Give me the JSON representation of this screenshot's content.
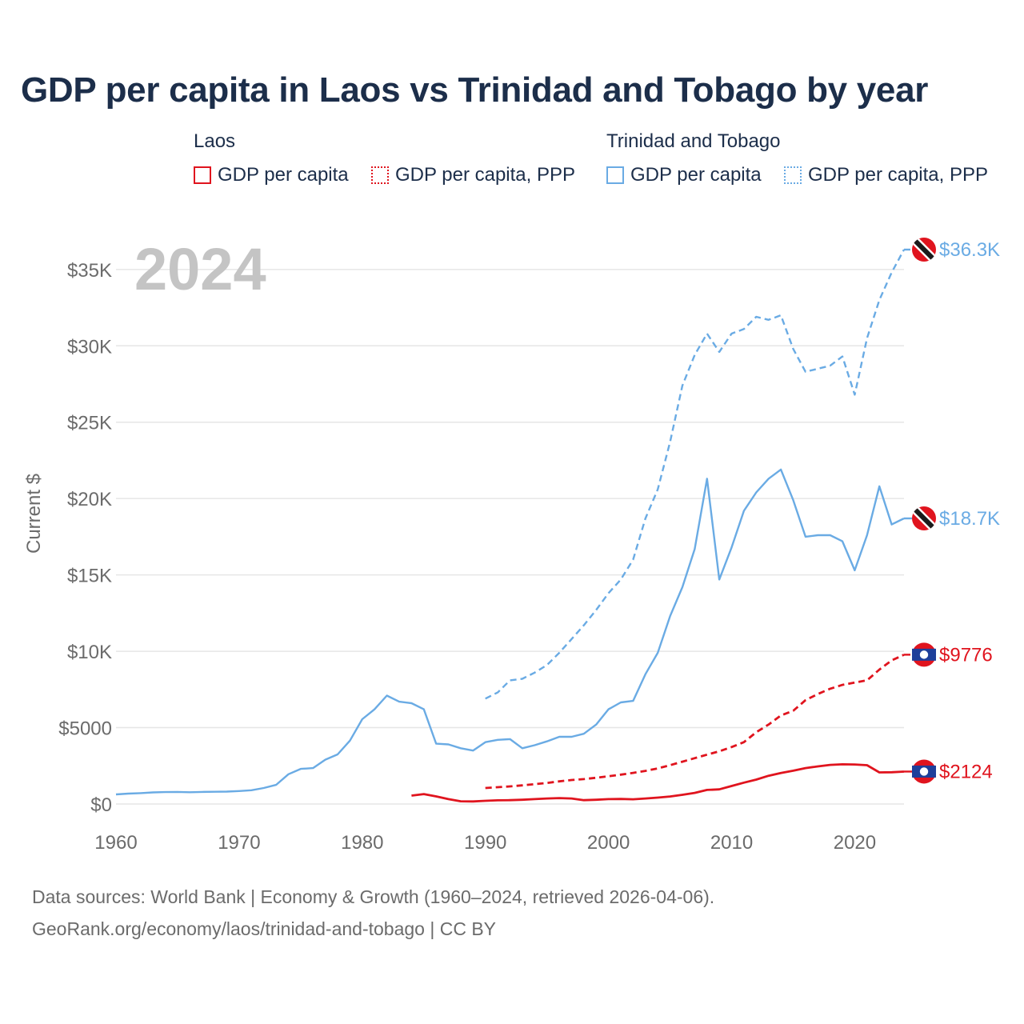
{
  "title": "GDP per capita in Laos vs Trinidad and Tobago by year",
  "legend": {
    "groups": [
      {
        "title": "Laos",
        "items": [
          {
            "label": "GDP per capita",
            "color": "#e0141e",
            "style": "solid"
          },
          {
            "label": "GDP per capita, PPP",
            "color": "#e0141e",
            "style": "dotted"
          }
        ]
      },
      {
        "title": "Trinidad and Tobago",
        "items": [
          {
            "label": "GDP per capita",
            "color": "#6aabe4",
            "style": "solid"
          },
          {
            "label": "GDP per capita, PPP",
            "color": "#6aabe4",
            "style": "dotted"
          }
        ]
      }
    ]
  },
  "footer": {
    "line1": "Data sources: World Bank | Economy & Growth (1960–2024, retrieved 2026-04-06).",
    "line2": "GeoRank.org/economy/laos/trinidad-and-tobago | CC BY"
  },
  "chart_data": {
    "type": "line",
    "year_label": "2024",
    "ylabel": "Current $",
    "xlim": [
      1960,
      2024
    ],
    "ylim": [
      0,
      36300
    ],
    "xticks": [
      1960,
      1970,
      1980,
      1990,
      2000,
      2010,
      2020
    ],
    "yticks": [
      0,
      5000,
      10000,
      15000,
      20000,
      25000,
      30000,
      35000
    ],
    "ytick_labels": [
      "$0",
      "$5000",
      "$10K",
      "$15K",
      "$20K",
      "$25K",
      "$30K",
      "$35K"
    ],
    "series": [
      {
        "name": "Trinidad and Tobago — GDP per capita, PPP",
        "country": "Trinidad and Tobago",
        "color": "#6aabe4",
        "dash": "dashed",
        "end_label": "$36.3K",
        "x": [
          1990,
          1991,
          1992,
          1993,
          1994,
          1995,
          1996,
          1997,
          1998,
          1999,
          2000,
          2001,
          2002,
          2003,
          2004,
          2005,
          2006,
          2007,
          2008,
          2009,
          2010,
          2011,
          2012,
          2013,
          2014,
          2015,
          2016,
          2017,
          2018,
          2019,
          2020,
          2021,
          2022,
          2023,
          2024
        ],
        "y": [
          6900,
          7300,
          8100,
          8200,
          8600,
          9100,
          9900,
          10800,
          11700,
          12700,
          13800,
          14700,
          16000,
          18700,
          20600,
          23700,
          27400,
          29400,
          30800,
          29600,
          30800,
          31100,
          31900,
          31700,
          32000,
          29800,
          28300,
          28500,
          28700,
          29300,
          26800,
          30500,
          33000,
          34800,
          36300
        ]
      },
      {
        "name": "Trinidad and Tobago — GDP per capita",
        "country": "Trinidad and Tobago",
        "color": "#6aabe4",
        "dash": "solid",
        "end_label": "$18.7K",
        "x": [
          1960,
          1961,
          1962,
          1963,
          1964,
          1965,
          1966,
          1967,
          1968,
          1969,
          1970,
          1971,
          1972,
          1973,
          1974,
          1975,
          1976,
          1977,
          1978,
          1979,
          1980,
          1981,
          1982,
          1983,
          1984,
          1985,
          1986,
          1987,
          1988,
          1989,
          1990,
          1991,
          1992,
          1993,
          1994,
          1995,
          1996,
          1997,
          1998,
          1999,
          2000,
          2001,
          2002,
          2003,
          2004,
          2005,
          2006,
          2007,
          2008,
          2009,
          2010,
          2011,
          2012,
          2013,
          2014,
          2015,
          2016,
          2017,
          2018,
          2019,
          2020,
          2021,
          2022,
          2023,
          2024
        ],
        "y": [
          630,
          680,
          710,
          760,
          780,
          790,
          770,
          790,
          800,
          810,
          850,
          900,
          1050,
          1250,
          1950,
          2300,
          2350,
          2900,
          3250,
          4150,
          5550,
          6200,
          7100,
          6700,
          6600,
          6200,
          3950,
          3900,
          3650,
          3500,
          4050,
          4200,
          4250,
          3650,
          3850,
          4100,
          4400,
          4400,
          4600,
          5200,
          6200,
          6650,
          6750,
          8500,
          9900,
          12300,
          14200,
          16700,
          21300,
          14700,
          16800,
          19200,
          20400,
          21300,
          21900,
          19900,
          17500,
          17600,
          17600,
          17200,
          15300,
          17600,
          20800,
          18300,
          18700
        ]
      },
      {
        "name": "Laos — GDP per capita, PPP",
        "country": "Laos",
        "color": "#e0141e",
        "dash": "dashed",
        "end_label": "$9776",
        "x": [
          1990,
          1991,
          1992,
          1993,
          1994,
          1995,
          1996,
          1997,
          1998,
          1999,
          2000,
          2001,
          2002,
          2003,
          2004,
          2005,
          2006,
          2007,
          2008,
          2009,
          2010,
          2011,
          2012,
          2013,
          2014,
          2015,
          2016,
          2017,
          2018,
          2019,
          2020,
          2021,
          2022,
          2023,
          2024
        ],
        "y": [
          1050,
          1100,
          1150,
          1220,
          1300,
          1380,
          1480,
          1570,
          1630,
          1720,
          1820,
          1920,
          2040,
          2170,
          2330,
          2540,
          2770,
          3000,
          3230,
          3450,
          3730,
          4050,
          4700,
          5200,
          5800,
          6100,
          6800,
          7200,
          7550,
          7800,
          7950,
          8100,
          8800,
          9400,
          9776
        ]
      },
      {
        "name": "Laos — GDP per capita",
        "country": "Laos",
        "color": "#e0141e",
        "dash": "solid",
        "end_label": "$2124",
        "x": [
          1984,
          1985,
          1986,
          1987,
          1988,
          1989,
          1990,
          1991,
          1992,
          1993,
          1994,
          1995,
          1996,
          1997,
          1998,
          1999,
          2000,
          2001,
          2002,
          2003,
          2004,
          2005,
          2006,
          2007,
          2008,
          2009,
          2010,
          2011,
          2012,
          2013,
          2014,
          2015,
          2016,
          2017,
          2018,
          2019,
          2020,
          2021,
          2022,
          2023,
          2024
        ],
        "y": [
          550,
          650,
          500,
          320,
          180,
          170,
          210,
          240,
          250,
          280,
          320,
          360,
          390,
          360,
          250,
          280,
          320,
          330,
          310,
          360,
          420,
          490,
          600,
          730,
          920,
          960,
          1180,
          1400,
          1600,
          1850,
          2030,
          2180,
          2350,
          2460,
          2560,
          2600,
          2590,
          2540,
          2070,
          2080,
          2124
        ]
      }
    ]
  }
}
